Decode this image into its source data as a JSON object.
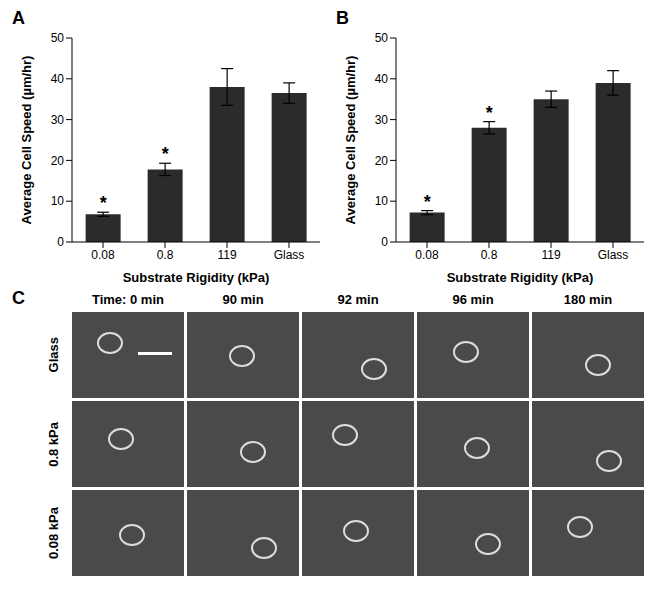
{
  "chart_data": [
    {
      "type": "bar",
      "title": "A",
      "categories": [
        "0.08",
        "0.8",
        "119",
        "Glass"
      ],
      "values": [
        6.8,
        17.8,
        38,
        36.5
      ],
      "errors": [
        0.5,
        1.5,
        4.5,
        2.5
      ],
      "significance": [
        "*",
        "*",
        null,
        null
      ],
      "color": "#2b2b2b",
      "x_label": "Substrate Rigidity (kPa)",
      "y_label": "Average Cell Speed (µm/hr)",
      "ylim": [
        0,
        50
      ],
      "yticks": [
        0,
        10,
        20,
        30,
        40,
        50
      ],
      "grid": false
    },
    {
      "type": "bar",
      "title": "B",
      "categories": [
        "0.08",
        "0.8",
        "119",
        "Glass"
      ],
      "values": [
        7.2,
        28,
        35,
        39
      ],
      "errors": [
        0.5,
        1.5,
        2,
        3
      ],
      "significance": [
        "*",
        "*",
        null,
        null
      ],
      "color": "#2b2b2b",
      "x_label": "Substrate Rigidity (kPa)",
      "y_label": "Average Cell Speed (µm/hr)",
      "ylim": [
        0,
        50
      ],
      "yticks": [
        0,
        10,
        20,
        30,
        40,
        50
      ],
      "grid": false
    }
  ],
  "image_panel": {
    "label": "C",
    "column_headers": [
      "Time: 0 min",
      "90 min",
      "92 min",
      "96 min",
      "180 min"
    ],
    "row_labels": [
      "Glass",
      "0.8 kPa",
      "0.08 kPa"
    ]
  }
}
